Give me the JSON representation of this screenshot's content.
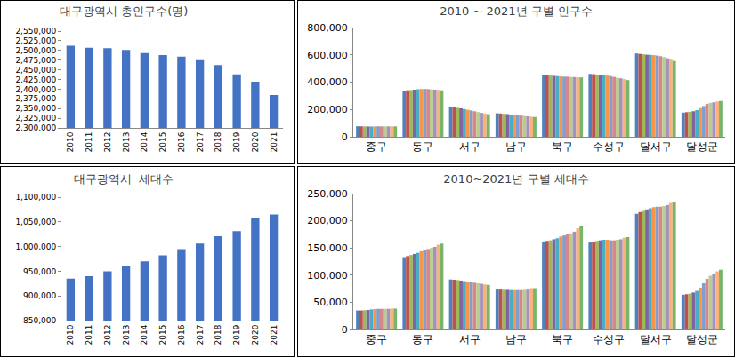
{
  "chart_data": [
    {
      "type": "bar",
      "title": "대구광역시 총인구수(명)",
      "categories": [
        "2010",
        "2011",
        "2012",
        "2013",
        "2014",
        "2015",
        "2016",
        "2017",
        "2018",
        "2019",
        "2020",
        "2021"
      ],
      "values": [
        2512000,
        2507000,
        2506000,
        2501000,
        2493000,
        2488000,
        2484000,
        2475000,
        2462000,
        2438000,
        2419000,
        2385000
      ],
      "color": "#4472C4",
      "grid": false,
      "ylim": [
        2300000,
        2550000
      ],
      "yticks": [
        {
          "value": 2300000,
          "label": "2,300,000"
        },
        {
          "value": 2325000,
          "label": "2,325,000"
        },
        {
          "value": 2350000,
          "label": "2,350,000"
        },
        {
          "value": 2375000,
          "label": "2,375,000"
        },
        {
          "value": 2400000,
          "label": "2,400,000"
        },
        {
          "value": 2425000,
          "label": "2,425,000"
        },
        {
          "value": 2450000,
          "label": "2,450,000"
        },
        {
          "value": 2475000,
          "label": "2,475,000"
        },
        {
          "value": 2500000,
          "label": "2,500,000"
        },
        {
          "value": 2525000,
          "label": "2,525,000"
        },
        {
          "value": 2550000,
          "label": "2,550,000"
        }
      ]
    },
    {
      "type": "bar",
      "title": "2010 ~ 2021년 구별 인구수",
      "categories": [
        "중구",
        "동구",
        "서구",
        "남구",
        "북구",
        "수성구",
        "달서구",
        "달성군"
      ],
      "grid": false,
      "series": [
        {
          "color": "#4F81BD",
          "values": [
            77000,
            338000,
            220000,
            172000,
            452000,
            460000,
            610000,
            177000
          ]
        },
        {
          "color": "#C0504D",
          "values": [
            76500,
            340000,
            216000,
            170000,
            450000,
            458000,
            607000,
            180000
          ]
        },
        {
          "color": "#9BBB59",
          "values": [
            76000,
            342000,
            212000,
            168000,
            448000,
            456000,
            604000,
            183000
          ]
        },
        {
          "color": "#8064A2",
          "values": [
            75500,
            345000,
            208000,
            166000,
            446000,
            455000,
            601000,
            187000
          ]
        },
        {
          "color": "#4BACC6",
          "values": [
            75000,
            348000,
            203000,
            163000,
            444000,
            452000,
            600000,
            195000
          ]
        },
        {
          "color": "#F79646",
          "values": [
            76000,
            350000,
            198000,
            160000,
            442000,
            448000,
            598000,
            210000
          ]
        },
        {
          "color": "#7F9FD0",
          "values": [
            76500,
            350000,
            193000,
            158000,
            440000,
            444000,
            595000,
            225000
          ]
        },
        {
          "color": "#D7868A",
          "values": [
            76000,
            349000,
            187000,
            155000,
            440000,
            438000,
            590000,
            240000
          ]
        },
        {
          "color": "#B8CE8C",
          "values": [
            75500,
            347000,
            181000,
            152000,
            438000,
            432000,
            584000,
            248000
          ]
        },
        {
          "color": "#A491BD",
          "values": [
            76000,
            345000,
            175000,
            150000,
            437000,
            428000,
            575000,
            252000
          ]
        },
        {
          "color": "#F9B27A",
          "values": [
            77000,
            343000,
            170000,
            147000,
            436000,
            422000,
            565000,
            258000
          ]
        },
        {
          "color": "#77B66A",
          "values": [
            76000,
            340000,
            165000,
            145000,
            435000,
            415000,
            555000,
            262000
          ]
        }
      ],
      "ylim": [
        0,
        800000
      ],
      "yticks": [
        0,
        {
          "value": 200000,
          "label": "200,000"
        },
        {
          "value": 400000,
          "label": "400,000"
        },
        {
          "value": 600000,
          "label": "600,000"
        },
        {
          "value": 800000,
          "label": "800,000"
        }
      ]
    },
    {
      "type": "bar",
      "title": "대구광역시  세대수",
      "categories": [
        "2010",
        "2011",
        "2012",
        "2013",
        "2014",
        "2015",
        "2016",
        "2017",
        "2018",
        "2019",
        "2020",
        "2021"
      ],
      "values": [
        935000,
        940000,
        950000,
        960000,
        970000,
        982000,
        995000,
        1006000,
        1021000,
        1031000,
        1057000,
        1065000
      ],
      "color": "#4472C4",
      "grid": false,
      "ylim": [
        850000,
        1100000
      ],
      "yticks": [
        {
          "value": 850000,
          "label": "850,000"
        },
        {
          "value": 900000,
          "label": "900,000"
        },
        {
          "value": 950000,
          "label": "950,000"
        },
        {
          "value": 1000000,
          "label": "1,000,000"
        },
        {
          "value": 1050000,
          "label": "1,050,000"
        },
        {
          "value": 1100000,
          "label": "1,100,000"
        }
      ]
    },
    {
      "type": "bar",
      "title": "2010~2021년 구별 세대수",
      "categories": [
        "중구",
        "동구",
        "서구",
        "남구",
        "북구",
        "수성구",
        "달서구",
        "달성군"
      ],
      "grid": false,
      "series": [
        {
          "color": "#4F81BD",
          "values": [
            35000,
            133000,
            92000,
            75000,
            162000,
            160000,
            213000,
            64000
          ]
        },
        {
          "color": "#C0504D",
          "values": [
            35000,
            135000,
            91500,
            75000,
            163000,
            161000,
            216000,
            65000
          ]
        },
        {
          "color": "#9BBB59",
          "values": [
            35500,
            137000,
            91000,
            74500,
            164000,
            163000,
            218000,
            66000
          ]
        },
        {
          "color": "#8064A2",
          "values": [
            36000,
            139000,
            90000,
            74500,
            166000,
            164000,
            221000,
            68000
          ]
        },
        {
          "color": "#4BACC6",
          "values": [
            37000,
            141000,
            89000,
            74000,
            168000,
            165000,
            223000,
            71000
          ]
        },
        {
          "color": "#F79646",
          "values": [
            37500,
            144000,
            88000,
            74000,
            171000,
            165000,
            225000,
            77000
          ]
        },
        {
          "color": "#7F9FD0",
          "values": [
            38000,
            146000,
            87000,
            74000,
            173000,
            164000,
            226000,
            85000
          ]
        },
        {
          "color": "#D7868A",
          "values": [
            38000,
            148000,
            86000,
            74000,
            175000,
            164000,
            226000,
            93000
          ]
        },
        {
          "color": "#B8CE8C",
          "values": [
            38000,
            150000,
            85000,
            74500,
            177000,
            165000,
            227000,
            99000
          ]
        },
        {
          "color": "#A491BD",
          "values": [
            38000,
            152000,
            84000,
            75000,
            180000,
            166000,
            229000,
            103000
          ]
        },
        {
          "color": "#F9B27A",
          "values": [
            38500,
            156000,
            83000,
            76000,
            186000,
            169000,
            233000,
            107000
          ]
        },
        {
          "color": "#77B66A",
          "values": [
            38500,
            158000,
            82000,
            76000,
            190000,
            170000,
            234000,
            110000
          ]
        }
      ],
      "ylim": [
        0,
        250000
      ],
      "yticks": [
        0,
        {
          "value": 50000,
          "label": "50,000"
        },
        {
          "value": 100000,
          "label": "100,000"
        },
        {
          "value": 150000,
          "label": "150,000"
        },
        {
          "value": 200000,
          "label": "200,000"
        },
        {
          "value": 250000,
          "label": "250,000"
        }
      ]
    }
  ]
}
